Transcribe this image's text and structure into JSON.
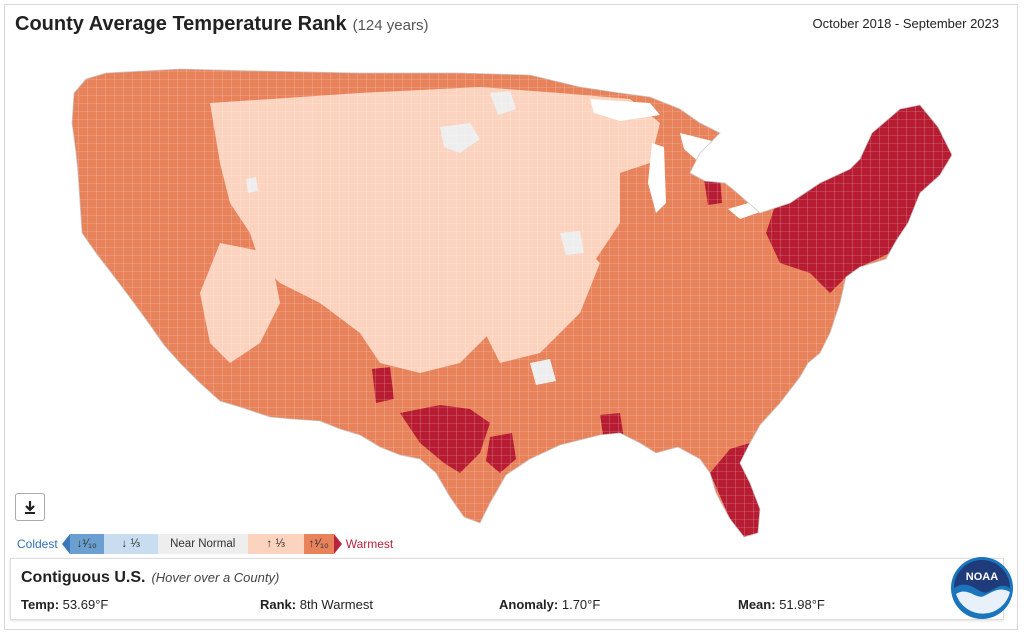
{
  "header": {
    "title": "County Average Temperature Rank",
    "subtitle": "(124 years)",
    "period": "October 2018 - September 2023"
  },
  "colors": {
    "record_warm": "#b71c32",
    "much_above": "#e8825a",
    "above": "#fbd3bf",
    "near_normal": "#eeeeee",
    "below": "#c8ddef",
    "much_below": "#6a9fcf",
    "record_cold": "#2b64ad",
    "county_border": "#ffffff"
  },
  "legend": {
    "coldest_label": "Coldest",
    "much_below_label": "↓¹⁄₁₀",
    "below_label": "↓ ⅓",
    "near_normal_label": "Near Normal",
    "above_label": "↑ ⅓",
    "much_above_label": "↑¹⁄₁₀",
    "warmest_label": "Warmest"
  },
  "info": {
    "region": "Contiguous U.S.",
    "hover_hint": "(Hover over a County)",
    "temp_label": "Temp:",
    "temp_value": "53.69°F",
    "rank_label": "Rank:",
    "rank_value": "8th Warmest",
    "anomaly_label": "Anomaly:",
    "anomaly_value": "1.70°F",
    "mean_label": "Mean:",
    "mean_value": "51.98°F"
  },
  "logo": {
    "text": "NOAA"
  },
  "icons": {
    "download": "download-icon"
  }
}
